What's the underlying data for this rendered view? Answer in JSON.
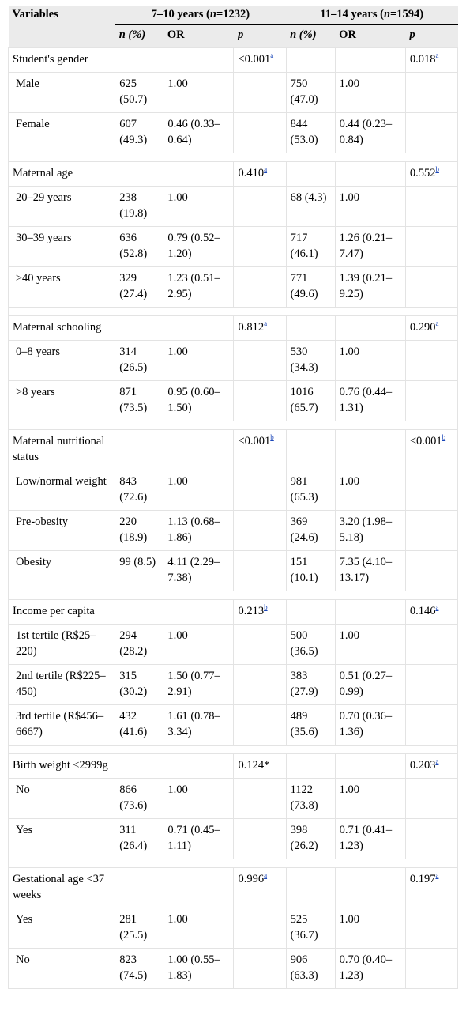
{
  "header": {
    "variables": "Variables",
    "group1": "7–10 years (n=1232)",
    "group2": "11–14 years (n=1594)",
    "n_pct": "n (%)",
    "or": "OR",
    "p": "p"
  },
  "sections": [
    {
      "label": "Student's gender",
      "p1": "<0.001",
      "p1_note": "a",
      "p2": "0.018",
      "p2_note": "a",
      "rows": [
        {
          "label": "Male",
          "n1": "625 (50.7)",
          "or1": "1.00",
          "n2": "750 (47.0)",
          "or2": "1.00"
        },
        {
          "label": "Female",
          "n1": "607 (49.3)",
          "or1": "0.46 (0.33–0.64)",
          "n2": "844 (53.0)",
          "or2": "0.44 (0.23–0.84)"
        }
      ]
    },
    {
      "label": "Maternal age",
      "p1": "0.410",
      "p1_note": "a",
      "p2": "0.552",
      "p2_note": "b",
      "rows": [
        {
          "label": "20–29 years",
          "n1": "238 (19.8)",
          "or1": "1.00",
          "n2": "68 (4.3)",
          "or2": "1.00"
        },
        {
          "label": "30–39 years",
          "n1": "636 (52.8)",
          "or1": "0.79 (0.52–1.20)",
          "n2": "717 (46.1)",
          "or2": "1.26 (0.21–7.47)"
        },
        {
          "label": "≥40 years",
          "n1": "329 (27.4)",
          "or1": "1.23 (0.51–2.95)",
          "n2": "771 (49.6)",
          "or2": "1.39 (0.21–9.25)"
        }
      ]
    },
    {
      "label": "Maternal schooling",
      "p1": "0.812",
      "p1_note": "a",
      "p2": "0.290",
      "p2_note": "a",
      "rows": [
        {
          "label": "0–8 years",
          "n1": "314 (26.5)",
          "or1": "1.00",
          "n2": "530 (34.3)",
          "or2": "1.00"
        },
        {
          "label": ">8 years",
          "n1": "871 (73.5)",
          "or1": "0.95 (0.60–1.50)",
          "n2": "1016 (65.7)",
          "or2": "0.76 (0.44–1.31)"
        }
      ]
    },
    {
      "label": "Maternal nutritional status",
      "p1": "<0.001",
      "p1_note": "b",
      "p2": "<0.001",
      "p2_note": "b",
      "rows": [
        {
          "label": "Low/normal weight",
          "n1": "843 (72.6)",
          "or1": "1.00",
          "n2": "981 (65.3)",
          "or2": "1.00"
        },
        {
          "label": "Pre-obesity",
          "n1": "220 (18.9)",
          "or1": "1.13 (0.68–1.86)",
          "n2": "369 (24.6)",
          "or2": "3.20 (1.98–5.18)"
        },
        {
          "label": "Obesity",
          "n1": "99 (8.5)",
          "or1": "4.11 (2.29–7.38)",
          "n2": "151 (10.1)",
          "or2": "7.35 (4.10–13.17)"
        }
      ]
    },
    {
      "label": "Income per capita",
      "p1": "0.213",
      "p1_note": "b",
      "p2": "0.146",
      "p2_note": "a",
      "rows": [
        {
          "label": "1st tertile (R$25–220)",
          "n1": "294 (28.2)",
          "or1": "1.00",
          "n2": "500 (36.5)",
          "or2": "1.00"
        },
        {
          "label": "2nd tertile (R$225–450)",
          "n1": "315 (30.2)",
          "or1": "1.50 (0.77–2.91)",
          "n2": "383 (27.9)",
          "or2": "0.51 (0.27–0.99)"
        },
        {
          "label": "3rd tertile (R$456–6667)",
          "n1": "432 (41.6)",
          "or1": "1.61 (0.78–3.34)",
          "n2": "489 (35.6)",
          "or2": "0.70 (0.36–1.36)"
        }
      ]
    },
    {
      "label": "Birth weight ≤2999g",
      "p1": "0.124*",
      "p1_note": "",
      "p2": "0.203",
      "p2_note": "a",
      "rows": [
        {
          "label": "No",
          "n1": "866 (73.6)",
          "or1": "1.00",
          "n2": "1122 (73.8)",
          "or2": "1.00"
        },
        {
          "label": "Yes",
          "n1": "311 (26.4)",
          "or1": "0.71 (0.45–1.11)",
          "n2": "398 (26.2)",
          "or2": "0.71 (0.41–1.23)"
        }
      ]
    },
    {
      "label": "Gestational age <37 weeks",
      "p1": "0.996",
      "p1_note": "a",
      "p2": "0.197",
      "p2_note": "a",
      "rows": [
        {
          "label": "Yes",
          "n1": "281 (25.5)",
          "or1": "1.00",
          "n2": "525 (36.7)",
          "or2": "1.00"
        },
        {
          "label": "No",
          "n1": "823 (74.5)",
          "or1": "1.00 (0.55–1.83)",
          "n2": "906 (63.3)",
          "or2": "0.70 (0.40–1.23)"
        }
      ]
    }
  ]
}
